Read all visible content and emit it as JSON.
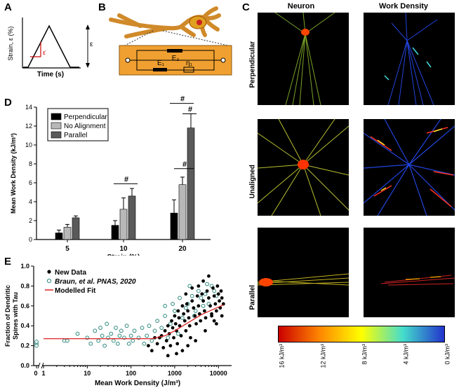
{
  "panels": {
    "A": "A",
    "B": "B",
    "C": "C",
    "D": "D",
    "E": "E"
  },
  "panel_a": {
    "ylabel": "Strain, ε (%)",
    "xlabel": "Time (s)",
    "epsilon": "ε",
    "epsilon_dot": "ε̇"
  },
  "panel_b": {
    "e2": "E₂",
    "e1": "E₁",
    "eta1": "η₁"
  },
  "panel_c": {
    "col_neuron": "Neuron",
    "col_work": "Work Density",
    "rows": [
      "Perpendicular",
      "Unaligned",
      "Parallel"
    ],
    "colorbar_labels": [
      "16 kJ/m³",
      "12 kJ/m³",
      "8 kJ/m³",
      "4 kJ/m³",
      "0 kJ/m³"
    ],
    "colorbar_colors": [
      "#cc0000",
      "#ff8800",
      "#ffff00",
      "#44ddcc",
      "#2233cc"
    ]
  },
  "chart_data": [
    {
      "type": "bar",
      "panel": "D",
      "categories": [
        "5",
        "10",
        "20"
      ],
      "series": [
        {
          "name": "Perpendicular",
          "values": [
            0.7,
            1.5,
            2.8
          ],
          "errors": [
            0.3,
            0.5,
            1.4
          ],
          "color": "#000000"
        },
        {
          "name": "No Alignment",
          "values": [
            1.3,
            3.2,
            5.8
          ],
          "errors": [
            0.3,
            1.2,
            0.8
          ],
          "color": "#b8b8b8"
        },
        {
          "name": "Parallel",
          "values": [
            2.3,
            4.6,
            11.8
          ],
          "errors": [
            0.2,
            0.8,
            1.5
          ],
          "color": "#5a5a5a"
        }
      ],
      "xlabel": "Strain (%)",
      "ylabel": "Mean Work Density (kJ/m³)",
      "ylim": [
        0,
        14
      ],
      "yticks": [
        "0",
        "2",
        "4",
        "6",
        "8",
        "10",
        "12",
        "14"
      ],
      "significance": [
        "#",
        "#",
        "#",
        "#"
      ],
      "legend_position": "top-left"
    },
    {
      "type": "scatter",
      "panel": "E",
      "xlabel": "Mean Work Density (J/m³)",
      "ylabel_line1": "Fraction of Dendritic",
      "ylabel_line2": "Spines with Tau",
      "xscale": "log",
      "xlim": [
        1,
        20000
      ],
      "ylim": [
        0,
        1.0
      ],
      "xticks": [
        "1",
        "10",
        "100",
        "1000",
        "10000"
      ],
      "x_zero_tick": "0",
      "yticks": [
        "0.0",
        "0.2",
        "0.4",
        "0.6",
        "0.8",
        "1.0"
      ],
      "legend": [
        "New Data",
        "Braun, et al. PNAS, 2020",
        "Modelled Fit"
      ],
      "new_data": [
        [
          400,
          0.22
        ],
        [
          450,
          0.28
        ],
        [
          500,
          0.3
        ],
        [
          550,
          0.18
        ],
        [
          600,
          0.35
        ],
        [
          650,
          0.25
        ],
        [
          700,
          0.4
        ],
        [
          750,
          0.32
        ],
        [
          800,
          0.2
        ],
        [
          850,
          0.45
        ],
        [
          900,
          0.38
        ],
        [
          950,
          0.28
        ],
        [
          1000,
          0.5
        ],
        [
          1050,
          0.42
        ],
        [
          1100,
          0.35
        ],
        [
          1150,
          0.22
        ],
        [
          1200,
          0.55
        ],
        [
          1250,
          0.48
        ],
        [
          1300,
          0.4
        ],
        [
          1400,
          0.3
        ],
        [
          1500,
          0.6
        ],
        [
          1600,
          0.52
        ],
        [
          1700,
          0.45
        ],
        [
          1800,
          0.35
        ],
        [
          1900,
          0.62
        ],
        [
          2000,
          0.55
        ],
        [
          2100,
          0.48
        ],
        [
          2200,
          0.4
        ],
        [
          2300,
          0.28
        ],
        [
          2500,
          0.65
        ],
        [
          2700,
          0.58
        ],
        [
          2900,
          0.5
        ],
        [
          3100,
          0.42
        ],
        [
          3300,
          0.7
        ],
        [
          3500,
          0.6
        ],
        [
          3700,
          0.52
        ],
        [
          3900,
          0.45
        ],
        [
          4200,
          0.72
        ],
        [
          4500,
          0.65
        ],
        [
          4800,
          0.55
        ],
        [
          5100,
          0.48
        ],
        [
          5500,
          0.75
        ],
        [
          6000,
          0.68
        ],
        [
          6500,
          0.6
        ],
        [
          7000,
          0.52
        ],
        [
          7500,
          0.78
        ],
        [
          8000,
          0.7
        ],
        [
          8500,
          0.62
        ],
        [
          9000,
          0.55
        ],
        [
          9500,
          0.8
        ],
        [
          10000,
          0.72
        ],
        [
          10500,
          0.65
        ],
        [
          11000,
          0.58
        ],
        [
          12000,
          0.68
        ],
        [
          1100,
          0.12
        ],
        [
          1500,
          0.15
        ],
        [
          2000,
          0.2
        ],
        [
          700,
          0.1
        ],
        [
          3000,
          0.25
        ],
        [
          5000,
          0.35
        ],
        [
          250,
          0.2
        ],
        [
          300,
          0.15
        ],
        [
          350,
          0.28
        ],
        [
          1800,
          0.72
        ],
        [
          2500,
          0.78
        ],
        [
          3500,
          0.8
        ],
        [
          4500,
          0.85
        ],
        [
          6000,
          0.9
        ],
        [
          7000,
          0.5
        ],
        [
          8000,
          0.45
        ],
        [
          9000,
          0.42
        ],
        [
          12000,
          0.5
        ],
        [
          13000,
          0.62
        ],
        [
          11500,
          0.75
        ]
      ],
      "braun_data": [
        [
          0,
          0.22
        ],
        [
          0,
          0.24
        ],
        [
          0,
          0.2
        ],
        [
          3,
          0.25
        ],
        [
          3.5,
          0.25
        ],
        [
          6,
          0.32
        ],
        [
          10,
          0.28
        ],
        [
          12,
          0.22
        ],
        [
          15,
          0.35
        ],
        [
          18,
          0.25
        ],
        [
          20,
          0.38
        ],
        [
          22,
          0.3
        ],
        [
          25,
          0.2
        ],
        [
          28,
          0.42
        ],
        [
          30,
          0.28
        ],
        [
          35,
          0.32
        ],
        [
          40,
          0.25
        ],
        [
          45,
          0.38
        ],
        [
          50,
          0.22
        ],
        [
          55,
          0.3
        ],
        [
          60,
          0.35
        ],
        [
          70,
          0.28
        ],
        [
          80,
          0.4
        ],
        [
          90,
          0.22
        ],
        [
          100,
          0.3
        ],
        [
          110,
          0.25
        ],
        [
          120,
          0.35
        ],
        [
          150,
          0.28
        ],
        [
          180,
          0.38
        ],
        [
          200,
          0.22
        ],
        [
          230,
          0.3
        ],
        [
          260,
          0.4
        ],
        [
          300,
          0.25
        ],
        [
          350,
          0.35
        ],
        [
          400,
          0.45
        ],
        [
          500,
          0.38
        ],
        [
          600,
          0.5
        ],
        [
          700,
          0.28
        ],
        [
          800,
          0.42
        ],
        [
          1000,
          0.55
        ],
        [
          1200,
          0.32
        ],
        [
          1500,
          0.48
        ],
        [
          2000,
          0.62
        ],
        [
          2500,
          0.7
        ],
        [
          3000,
          0.55
        ],
        [
          3500,
          0.75
        ],
        [
          4000,
          0.68
        ],
        [
          5000,
          0.72
        ],
        [
          6000,
          0.62
        ],
        [
          7000,
          0.8
        ],
        [
          8000,
          0.75
        ],
        [
          9000,
          0.7
        ],
        [
          600,
          0.6
        ],
        [
          900,
          0.62
        ],
        [
          1300,
          0.68
        ],
        [
          1800,
          0.58
        ],
        [
          2200,
          0.8
        ],
        [
          2800,
          0.5
        ],
        [
          4500,
          0.6
        ],
        [
          5500,
          0.82
        ]
      ],
      "fit": [
        [
          1,
          0.27
        ],
        [
          100,
          0.27
        ],
        [
          300,
          0.27
        ],
        [
          600,
          0.3
        ],
        [
          1000,
          0.35
        ],
        [
          2000,
          0.43
        ],
        [
          4000,
          0.51
        ],
        [
          8000,
          0.57
        ],
        [
          13000,
          0.61
        ]
      ]
    }
  ]
}
